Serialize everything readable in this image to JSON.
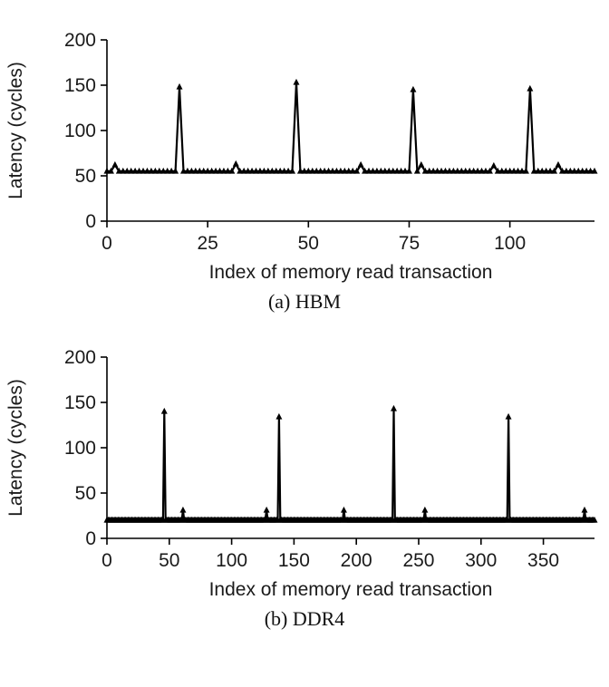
{
  "chart_data": [
    {
      "type": "line",
      "title": "(a) HBM",
      "xlabel": "Index of memory read transaction",
      "ylabel": "Latency (cycles)",
      "xlim": [
        0,
        121
      ],
      "ylim": [
        0,
        200
      ],
      "xticks": [
        0,
        25,
        50,
        75,
        100
      ],
      "yticks": [
        0,
        50,
        100,
        150,
        200
      ],
      "grid": false,
      "legend": "none",
      "marker": "filled-triangle",
      "line_color": "#000000",
      "baseline": 55,
      "x_step": 1,
      "spikes": [
        {
          "x": 18,
          "y": 148
        },
        {
          "x": 47,
          "y": 153
        },
        {
          "x": 76,
          "y": 145
        },
        {
          "x": 105,
          "y": 146
        }
      ],
      "minor_bumps": [
        {
          "x": 2,
          "y": 62
        },
        {
          "x": 32,
          "y": 63
        },
        {
          "x": 63,
          "y": 62
        },
        {
          "x": 78,
          "y": 62
        },
        {
          "x": 96,
          "y": 61
        },
        {
          "x": 112,
          "y": 62
        }
      ]
    },
    {
      "type": "line",
      "title": "(b) DDR4",
      "xlabel": "Index of memory read transaction",
      "ylabel": "Latency (cycles)",
      "xlim": [
        0,
        391
      ],
      "ylim": [
        0,
        200
      ],
      "xticks": [
        0,
        50,
        100,
        150,
        200,
        250,
        300,
        350
      ],
      "yticks": [
        0,
        50,
        100,
        150,
        200
      ],
      "grid": false,
      "legend": "none",
      "marker": "filled-triangle",
      "line_color": "#000000",
      "baseline": 20,
      "x_step": 1,
      "spikes": [
        {
          "x": 46,
          "y": 140
        },
        {
          "x": 138,
          "y": 134
        },
        {
          "x": 230,
          "y": 143
        },
        {
          "x": 322,
          "y": 134
        }
      ],
      "minor_bumps": [
        {
          "x": 61,
          "y": 31
        },
        {
          "x": 128,
          "y": 31
        },
        {
          "x": 190,
          "y": 31
        },
        {
          "x": 255,
          "y": 31
        },
        {
          "x": 383,
          "y": 31
        }
      ]
    }
  ]
}
